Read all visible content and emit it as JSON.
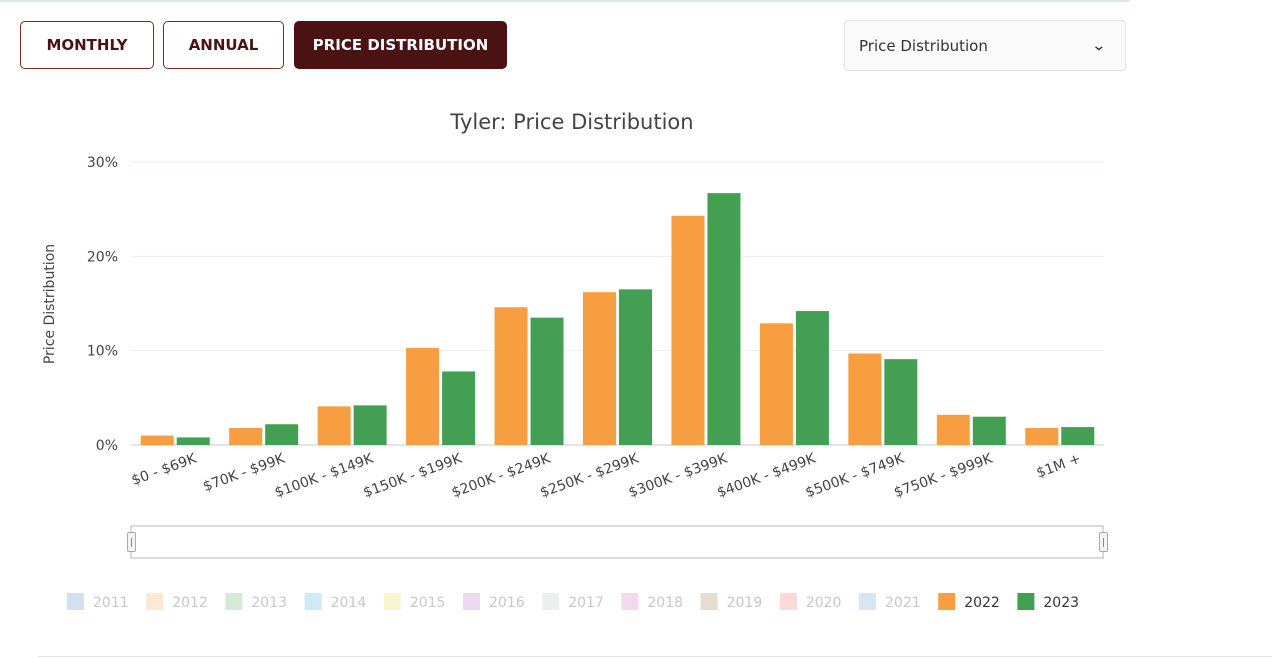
{
  "tabs": [
    {
      "label": "MONTHLY",
      "active": false
    },
    {
      "label": "ANNUAL",
      "active": false
    },
    {
      "label": "PRICE DISTRIBUTION",
      "active": true
    }
  ],
  "dropdown": {
    "selected": "Price Distribution",
    "icon": "chevron-down-icon"
  },
  "colors": {
    "2022": "#f79f40",
    "2023": "#43a053",
    "accent": "#4a1212"
  },
  "chart_data": {
    "type": "bar",
    "title": "Tyler: Price Distribution",
    "xlabel": "",
    "ylabel": "Price Distribution",
    "ylim": [
      0,
      30
    ],
    "yticks": [
      "0%",
      "10%",
      "20%",
      "30%"
    ],
    "categories": [
      "$0 - $69K",
      "$70K - $99K",
      "$100K - $149K",
      "$150K - $199K",
      "$200K - $249K",
      "$250K - $299K",
      "$300K - $399K",
      "$400K - $499K",
      "$500K - $749K",
      "$750K - $999K",
      "$1M +"
    ],
    "series": [
      {
        "name": "2022",
        "values": [
          1.0,
          1.8,
          4.1,
          10.3,
          14.6,
          16.2,
          24.3,
          12.9,
          9.7,
          3.2,
          1.8
        ]
      },
      {
        "name": "2023",
        "values": [
          0.8,
          2.2,
          4.2,
          7.8,
          13.5,
          16.5,
          26.7,
          14.2,
          9.1,
          3.0,
          1.9
        ]
      }
    ],
    "legend": {
      "placement": "bottom",
      "items": [
        {
          "label": "2011",
          "color": "#a6c4e4",
          "active": false
        },
        {
          "label": "2012",
          "color": "#fbd3a8",
          "active": false
        },
        {
          "label": "2013",
          "color": "#a9d3b0",
          "active": false
        },
        {
          "label": "2014",
          "color": "#9ed8ea",
          "active": false
        },
        {
          "label": "2015",
          "color": "#f2ee98",
          "active": false
        },
        {
          "label": "2016",
          "color": "#d6b5dd",
          "active": false
        },
        {
          "label": "2017",
          "color": "#dcdedf",
          "active": false
        },
        {
          "label": "2018",
          "color": "#eab4dc",
          "active": false
        },
        {
          "label": "2019",
          "color": "#cbbb9f",
          "active": false
        },
        {
          "label": "2020",
          "color": "#f6b4b1",
          "active": false
        },
        {
          "label": "2021",
          "color": "#b4cbea",
          "active": false
        },
        {
          "label": "2022",
          "color": "#f79f40",
          "active": true
        },
        {
          "label": "2023",
          "color": "#43a053",
          "active": true
        }
      ]
    },
    "grid": true
  }
}
